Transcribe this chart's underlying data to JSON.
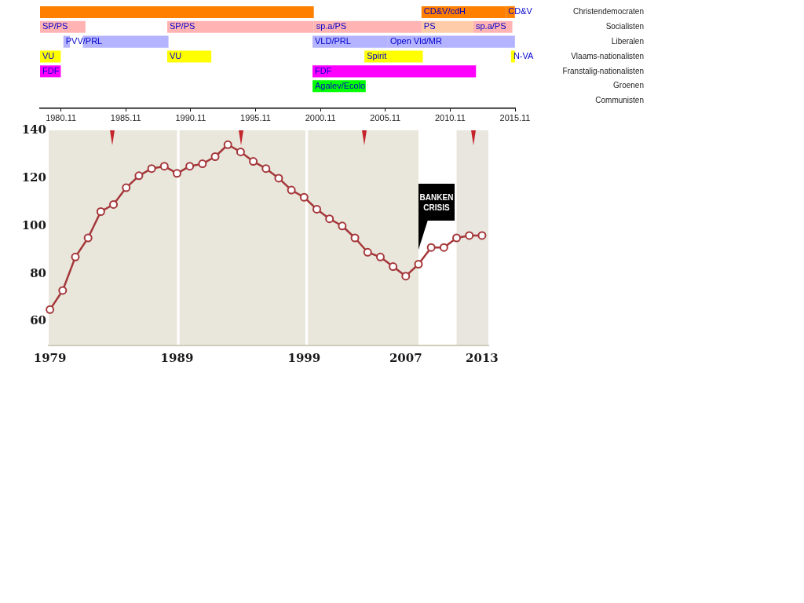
{
  "chart_data": [
    {
      "type": "bar",
      "orientation": "horizontal",
      "categories": [
        "Christendemocraten",
        "Socialisten",
        "Liberalen",
        "Vlaams-nationalisten",
        "Franstalig-nationalisten",
        "Groenen",
        "Communisten"
      ],
      "xlim": [
        1978.5,
        2015.11
      ],
      "xticks": [
        1980.11,
        1985.11,
        1990.11,
        1995.11,
        2000.11,
        2005.11,
        2010.11,
        2015.11
      ],
      "series": [
        {
          "color": "#ff8000",
          "values": [
            21.1,
            null,
            null,
            null,
            null,
            null,
            null
          ],
          "base": [
            1978.5,
            null,
            null,
            null,
            null,
            null,
            null
          ]
        },
        {
          "name": "CD&V/cdH",
          "color": "#ff8000",
          "values": [
            6.5,
            null,
            null,
            null,
            null,
            null,
            null
          ],
          "base": [
            2007.9,
            null,
            null,
            null,
            null,
            null,
            null
          ]
        },
        {
          "name": "CD&V",
          "color": "#ff8000",
          "values": [
            0.7,
            null,
            null,
            null,
            null,
            null,
            null
          ],
          "base": [
            2014.4,
            null,
            null,
            null,
            null,
            null,
            null
          ]
        },
        {
          "name": "SP/PS",
          "color": "#ffb3b3",
          "values": [
            null,
            3.5,
            null,
            null,
            null,
            null,
            null
          ],
          "base": [
            null,
            1978.5,
            null,
            null,
            null,
            null,
            null
          ]
        },
        {
          "name": "SP/PS",
          "color": "#ffb3b3",
          "values": [
            null,
            11.3,
            null,
            null,
            null,
            null,
            null
          ],
          "base": [
            null,
            1988.3,
            null,
            null,
            null,
            null,
            null
          ]
        },
        {
          "name": "sp.a/PS",
          "color": "#ffb3b3",
          "values": [
            null,
            8.3,
            null,
            null,
            null,
            null,
            null
          ],
          "base": [
            null,
            1999.6,
            null,
            null,
            null,
            null,
            null
          ]
        },
        {
          "name": "PS",
          "color": "#ffccaa",
          "values": [
            null,
            4.0,
            null,
            null,
            null,
            null,
            null
          ],
          "base": [
            null,
            2007.9,
            null,
            null,
            null,
            null,
            null
          ]
        },
        {
          "name": "sp.a/PS",
          "color": "#ffb3b3",
          "values": [
            null,
            3.0,
            null,
            null,
            null,
            null,
            null
          ],
          "base": [
            null,
            2011.9,
            null,
            null,
            null,
            null,
            null
          ]
        },
        {
          "name": "PVV/PRL",
          "color": "#b3b3ff",
          "values": [
            null,
            null,
            0.5,
            null,
            null,
            null,
            null
          ],
          "base": [
            null,
            null,
            1980.3,
            null,
            null,
            null,
            null
          ]
        },
        {
          "color": "#b3b3ff",
          "values": [
            null,
            null,
            6.6,
            null,
            null,
            null,
            null
          ],
          "base": [
            null,
            null,
            1981.8,
            null,
            null,
            null,
            null
          ]
        },
        {
          "name": "VLD/PRL",
          "color": "#b3b3ff",
          "values": [
            null,
            null,
            5.8,
            null,
            null,
            null,
            null
          ],
          "base": [
            null,
            null,
            1999.5,
            null,
            null,
            null,
            null
          ]
        },
        {
          "name": "Open Vld/MR",
          "color": "#b3b3ff",
          "values": [
            null,
            null,
            9.8,
            null,
            null,
            null,
            null
          ],
          "base": [
            null,
            null,
            2005.3,
            null,
            null,
            null,
            null
          ]
        },
        {
          "name": "VU",
          "color": "#ffff00",
          "values": [
            null,
            null,
            null,
            1.6,
            null,
            null,
            null
          ],
          "base": [
            null,
            null,
            null,
            1978.5,
            null,
            null,
            null
          ]
        },
        {
          "name": "VU",
          "color": "#ffff00",
          "values": [
            null,
            null,
            null,
            3.4,
            null,
            null,
            null
          ],
          "base": [
            null,
            null,
            null,
            1988.3,
            null,
            null,
            null
          ]
        },
        {
          "name": "Spirit",
          "color": "#ffff00",
          "values": [
            null,
            null,
            null,
            4.5,
            null,
            null,
            null
          ],
          "base": [
            null,
            null,
            null,
            2003.5,
            null,
            null,
            null
          ]
        },
        {
          "name": "N-VA",
          "color": "#ffff00",
          "values": [
            null,
            null,
            null,
            0.3,
            null,
            null,
            null
          ],
          "base": [
            null,
            null,
            null,
            2014.8,
            null,
            null,
            null
          ]
        },
        {
          "name": "FDF",
          "color": "#ff00ff",
          "values": [
            null,
            null,
            null,
            null,
            1.6,
            null,
            null
          ],
          "base": [
            null,
            null,
            null,
            null,
            1978.5,
            null,
            null
          ]
        },
        {
          "name": "FDF",
          "color": "#ff00ff",
          "values": [
            null,
            null,
            null,
            null,
            12.6,
            null,
            null
          ],
          "base": [
            null,
            null,
            null,
            null,
            1999.5,
            null,
            null
          ]
        },
        {
          "name": "Agalev/Ecolo",
          "color": "#00ff00",
          "values": [
            null,
            null,
            null,
            null,
            null,
            4.1,
            null
          ],
          "base": [
            null,
            null,
            null,
            null,
            null,
            1999.5,
            null
          ]
        }
      ]
    },
    {
      "type": "line",
      "x": [
        1979,
        1980,
        1981,
        1982,
        1983,
        1984,
        1985,
        1986,
        1987,
        1988,
        1989,
        1990,
        1991,
        1992,
        1993,
        1994,
        1995,
        1996,
        1997,
        1998,
        1999,
        2000,
        2001,
        2002,
        2003,
        2004,
        2005,
        2006,
        2007,
        2008,
        2009,
        2010,
        2011,
        2012,
        2013
      ],
      "values": [
        65,
        73,
        87,
        95,
        106,
        109,
        116,
        121,
        124,
        125,
        122,
        125,
        126,
        129,
        134,
        131,
        127,
        124,
        120,
        115,
        112,
        107,
        103,
        100,
        95,
        89,
        87,
        83,
        79,
        84,
        91,
        91,
        95,
        96,
        96
      ],
      "color": "#a5373a",
      "marker": "circle",
      "xlim": [
        1978.9,
        2013.5
      ],
      "xticks": [
        1979,
        1989,
        1999,
        2007,
        2013
      ],
      "ylim": [
        50,
        140
      ],
      "yticks": [
        60,
        80,
        100,
        120,
        140
      ],
      "bands": [
        {
          "axis": "x",
          "from": 1978.9,
          "to": 1989.0,
          "color": "#e9e7dc"
        },
        {
          "axis": "x",
          "from": 1989.2,
          "to": 1999.1,
          "color": "#e9e7dc"
        },
        {
          "axis": "x",
          "from": 1999.3,
          "to": 2008.0,
          "color": "#e9e7dc"
        },
        {
          "axis": "x",
          "from": 2011.0,
          "to": 2013.5,
          "color": "#e8e6df"
        }
      ],
      "annotations": [
        {
          "text": "BANKEN CRISIS",
          "x": 2008,
          "y": 90
        }
      ]
    }
  ]
}
